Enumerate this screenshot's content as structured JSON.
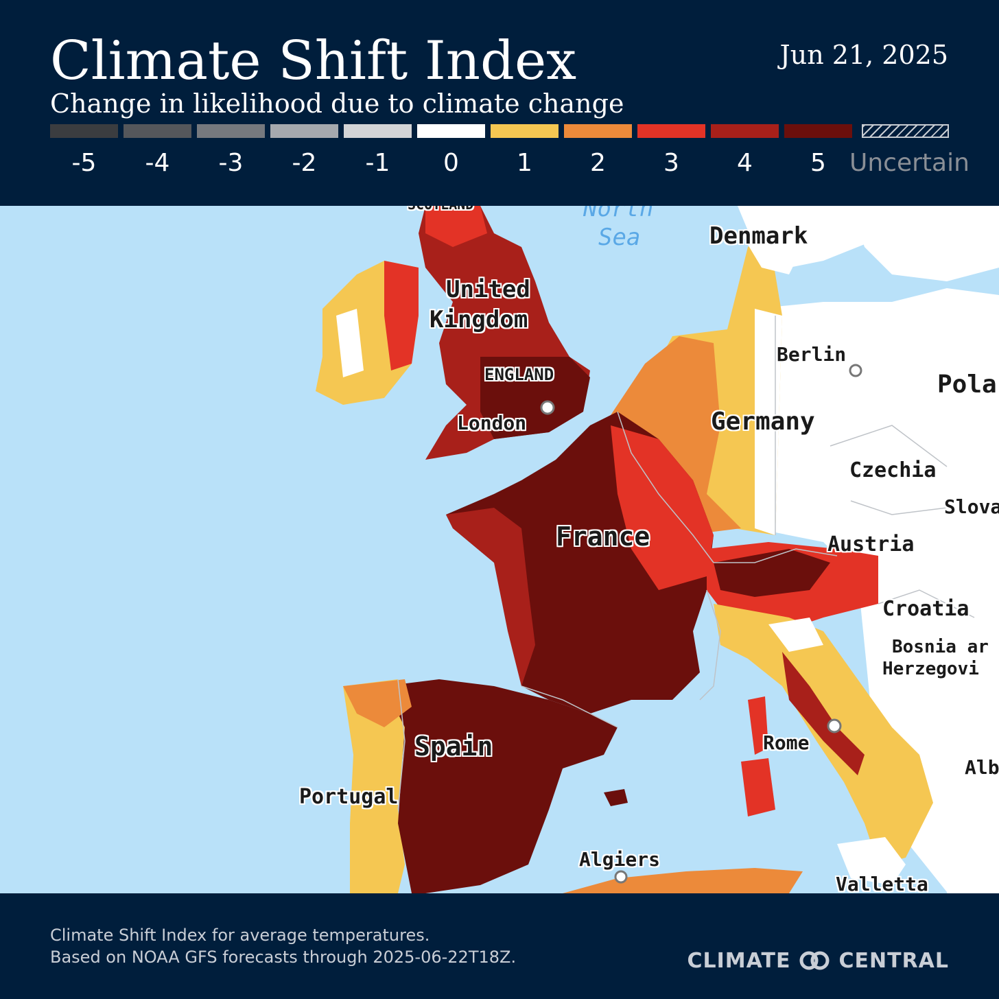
{
  "header": {
    "title": "Climate Shift Index",
    "subtitle": "Change in likelihood due to climate change",
    "date": "Jun 21, 2025"
  },
  "legend": {
    "items": [
      {
        "label": "-5",
        "color": "#3b3d40"
      },
      {
        "label": "-4",
        "color": "#55575b"
      },
      {
        "label": "-3",
        "color": "#76797e"
      },
      {
        "label": "-2",
        "color": "#a6a9ae"
      },
      {
        "label": "-1",
        "color": "#d3d4d6"
      },
      {
        "label": "0",
        "color": "#ffffff"
      },
      {
        "label": "1",
        "color": "#f5c752"
      },
      {
        "label": "2",
        "color": "#ec8a3a"
      },
      {
        "label": "3",
        "color": "#e33326"
      },
      {
        "label": "4",
        "color": "#a8201a"
      },
      {
        "label": "5",
        "color": "#6b0f0c"
      }
    ],
    "uncertain_label": "Uncertain"
  },
  "map": {
    "colors": {
      "sea": "#b9e1f9",
      "land_neutral": "#ffffff",
      "border": "#bfc3c8"
    },
    "labels": {
      "scotland": "SCOTLAND",
      "north": "North",
      "sea": "Sea",
      "denmark": "Denmark",
      "united": "United",
      "kingdom": "Kingdom",
      "berlin": "Berlin",
      "poland": "Pola",
      "england": "ENGLAND",
      "london": "London",
      "germany": "Germany",
      "czechia": "Czechia",
      "slovakia": "Slova",
      "france": "France",
      "austria": "Austria",
      "croatia": "Croatia",
      "bosnia": "Bosnia ar",
      "herzegovina": "Herzegovi",
      "spain": "Spain",
      "rome": "Rome",
      "albania": "Alb",
      "portugal": "Portugal",
      "algiers": "Algiers",
      "valletta": "Valletta"
    }
  },
  "footer": {
    "line1": "Climate Shift Index for average temperatures.",
    "line2": "Based on NOAA GFS forecasts through 2025-06-22T18Z.",
    "brand_left": "CLIMATE",
    "brand_right": "CENTRAL"
  }
}
